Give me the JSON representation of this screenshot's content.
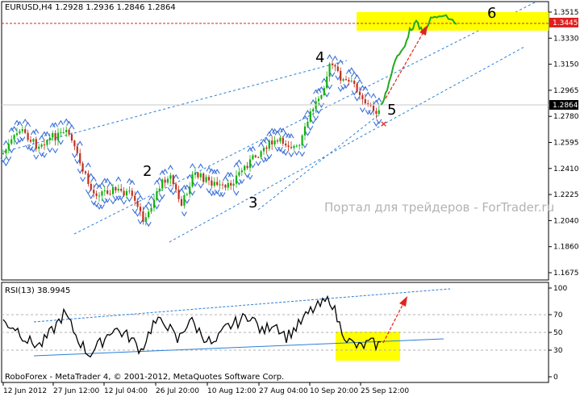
{
  "colors": {
    "bull": "#10b010",
    "bear": "#c03020",
    "forecast": "#22aa22",
    "arrow": "#e0241a",
    "channel": "#2a7fd8",
    "highlight": "#ffff00",
    "level_line": "#e02020",
    "watermark": "#b3b3b3",
    "fractal": "#3a6fd8"
  },
  "main": {
    "title": "EURUSD,H4  1.2928 1.2936 1.2846 1.2864",
    "watermark": "Портал для трейдеров - ForTrader.ru",
    "price_axis": [
      "1.3515",
      "1.3330",
      "1.3150",
      "1.2965",
      "1.2780",
      "1.2595",
      "1.2410",
      "1.2225",
      "1.2040",
      "1.1860",
      "1.1675"
    ],
    "level_tag": "1.3445",
    "current_tag": "1.2864",
    "wave_labels": [
      "2",
      "3",
      "4",
      "5",
      "6"
    ]
  },
  "rsi": {
    "title": "RSI(13) 38.9945",
    "axis": [
      "100",
      "70",
      "50",
      "30",
      "0"
    ]
  },
  "footer": {
    "copyright": "RoboForex - MetaTrader 4, © 2001-2012, MetaQuotes Software Corp.",
    "time_axis": [
      "12 Jun 2012",
      "27 Jun 12:00",
      "12 Jul 04:00",
      "26 Jul 20:00",
      "10 Aug 12:00",
      "27 Aug 04:00",
      "10 Sep 20:00",
      "25 Sep 12:00"
    ]
  }
}
